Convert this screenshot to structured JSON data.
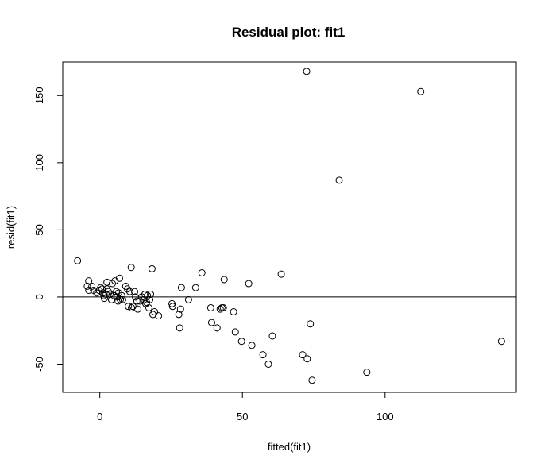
{
  "chart_data": {
    "type": "scatter",
    "title": "Residual plot: fit1",
    "xlabel": "fitted(fit1)",
    "ylabel": "resid(fit1)",
    "xlim": [
      -13,
      146
    ],
    "ylim": [
      -71,
      175
    ],
    "x_ticks": [
      0,
      50,
      100
    ],
    "x_tick_labels": [
      "0",
      "50",
      "100"
    ],
    "y_ticks": [
      -50,
      0,
      50,
      100,
      150
    ],
    "y_tick_labels": [
      "-50",
      "0",
      "50",
      "100",
      "150"
    ],
    "reference_line_y": 0,
    "grid": false,
    "marker": "open-circle",
    "points": [
      {
        "x": -7.8,
        "y": 27
      },
      {
        "x": -4.4,
        "y": 8
      },
      {
        "x": -3.9,
        "y": 12
      },
      {
        "x": -3.9,
        "y": 5
      },
      {
        "x": -2.8,
        "y": 8
      },
      {
        "x": -2.2,
        "y": 5
      },
      {
        "x": -1.1,
        "y": 3
      },
      {
        "x": -0.3,
        "y": 5
      },
      {
        "x": 0.3,
        "y": 7
      },
      {
        "x": 0.8,
        "y": 6
      },
      {
        "x": 1.1,
        "y": 3
      },
      {
        "x": 1.4,
        "y": 1
      },
      {
        "x": 1.6,
        "y": -1
      },
      {
        "x": 2.2,
        "y": 2
      },
      {
        "x": 2.5,
        "y": 6
      },
      {
        "x": 2.5,
        "y": 11
      },
      {
        "x": 3.0,
        "y": 4
      },
      {
        "x": 3.6,
        "y": 2
      },
      {
        "x": 4.1,
        "y": -2
      },
      {
        "x": 4.4,
        "y": 10
      },
      {
        "x": 5.0,
        "y": 1
      },
      {
        "x": 5.3,
        "y": 12
      },
      {
        "x": 5.8,
        "y": 4
      },
      {
        "x": 6.1,
        "y": 0
      },
      {
        "x": 6.4,
        "y": -3
      },
      {
        "x": 6.6,
        "y": 3
      },
      {
        "x": 6.9,
        "y": 14
      },
      {
        "x": 7.2,
        "y": -2
      },
      {
        "x": 7.7,
        "y": 1
      },
      {
        "x": 8.0,
        "y": -2
      },
      {
        "x": 9.1,
        "y": 8
      },
      {
        "x": 9.7,
        "y": 6
      },
      {
        "x": 10.0,
        "y": -7
      },
      {
        "x": 10.5,
        "y": 4
      },
      {
        "x": 11.0,
        "y": 22
      },
      {
        "x": 11.1,
        "y": -8
      },
      {
        "x": 11.6,
        "y": -7
      },
      {
        "x": 12.2,
        "y": 4
      },
      {
        "x": 12.5,
        "y": 0
      },
      {
        "x": 13.0,
        "y": -3
      },
      {
        "x": 13.3,
        "y": -9
      },
      {
        "x": 14.1,
        "y": -3
      },
      {
        "x": 14.7,
        "y": 0
      },
      {
        "x": 15.5,
        "y": -2
      },
      {
        "x": 15.8,
        "y": 2
      },
      {
        "x": 16.1,
        "y": -5
      },
      {
        "x": 16.4,
        "y": -4
      },
      {
        "x": 16.7,
        "y": 1
      },
      {
        "x": 17.2,
        "y": -8
      },
      {
        "x": 17.5,
        "y": -2
      },
      {
        "x": 17.8,
        "y": 2
      },
      {
        "x": 18.3,
        "y": 21
      },
      {
        "x": 18.6,
        "y": -13
      },
      {
        "x": 19.2,
        "y": -11
      },
      {
        "x": 20.6,
        "y": -14
      },
      {
        "x": 25.3,
        "y": -5
      },
      {
        "x": 25.5,
        "y": -7
      },
      {
        "x": 27.7,
        "y": -13
      },
      {
        "x": 28.0,
        "y": -23
      },
      {
        "x": 28.3,
        "y": -9
      },
      {
        "x": 28.6,
        "y": 7
      },
      {
        "x": 31.1,
        "y": -2
      },
      {
        "x": 33.6,
        "y": 7
      },
      {
        "x": 35.8,
        "y": 18
      },
      {
        "x": 38.9,
        "y": -8
      },
      {
        "x": 39.2,
        "y": -19
      },
      {
        "x": 41.1,
        "y": -23
      },
      {
        "x": 42.2,
        "y": -9
      },
      {
        "x": 42.8,
        "y": -8
      },
      {
        "x": 43.3,
        "y": -8
      },
      {
        "x": 43.6,
        "y": 13
      },
      {
        "x": 46.9,
        "y": -11
      },
      {
        "x": 47.5,
        "y": -26
      },
      {
        "x": 49.7,
        "y": -33
      },
      {
        "x": 52.2,
        "y": 10
      },
      {
        "x": 53.3,
        "y": -36
      },
      {
        "x": 57.2,
        "y": -43
      },
      {
        "x": 59.1,
        "y": -50
      },
      {
        "x": 60.5,
        "y": -29
      },
      {
        "x": 63.6,
        "y": 17
      },
      {
        "x": 71.1,
        "y": -43
      },
      {
        "x": 72.5,
        "y": 168
      },
      {
        "x": 72.7,
        "y": -46
      },
      {
        "x": 73.8,
        "y": -20
      },
      {
        "x": 74.4,
        "y": -62
      },
      {
        "x": 83.9,
        "y": 87
      },
      {
        "x": 93.6,
        "y": -56
      },
      {
        "x": 112.5,
        "y": 153
      },
      {
        "x": 140.8,
        "y": -33
      }
    ]
  }
}
